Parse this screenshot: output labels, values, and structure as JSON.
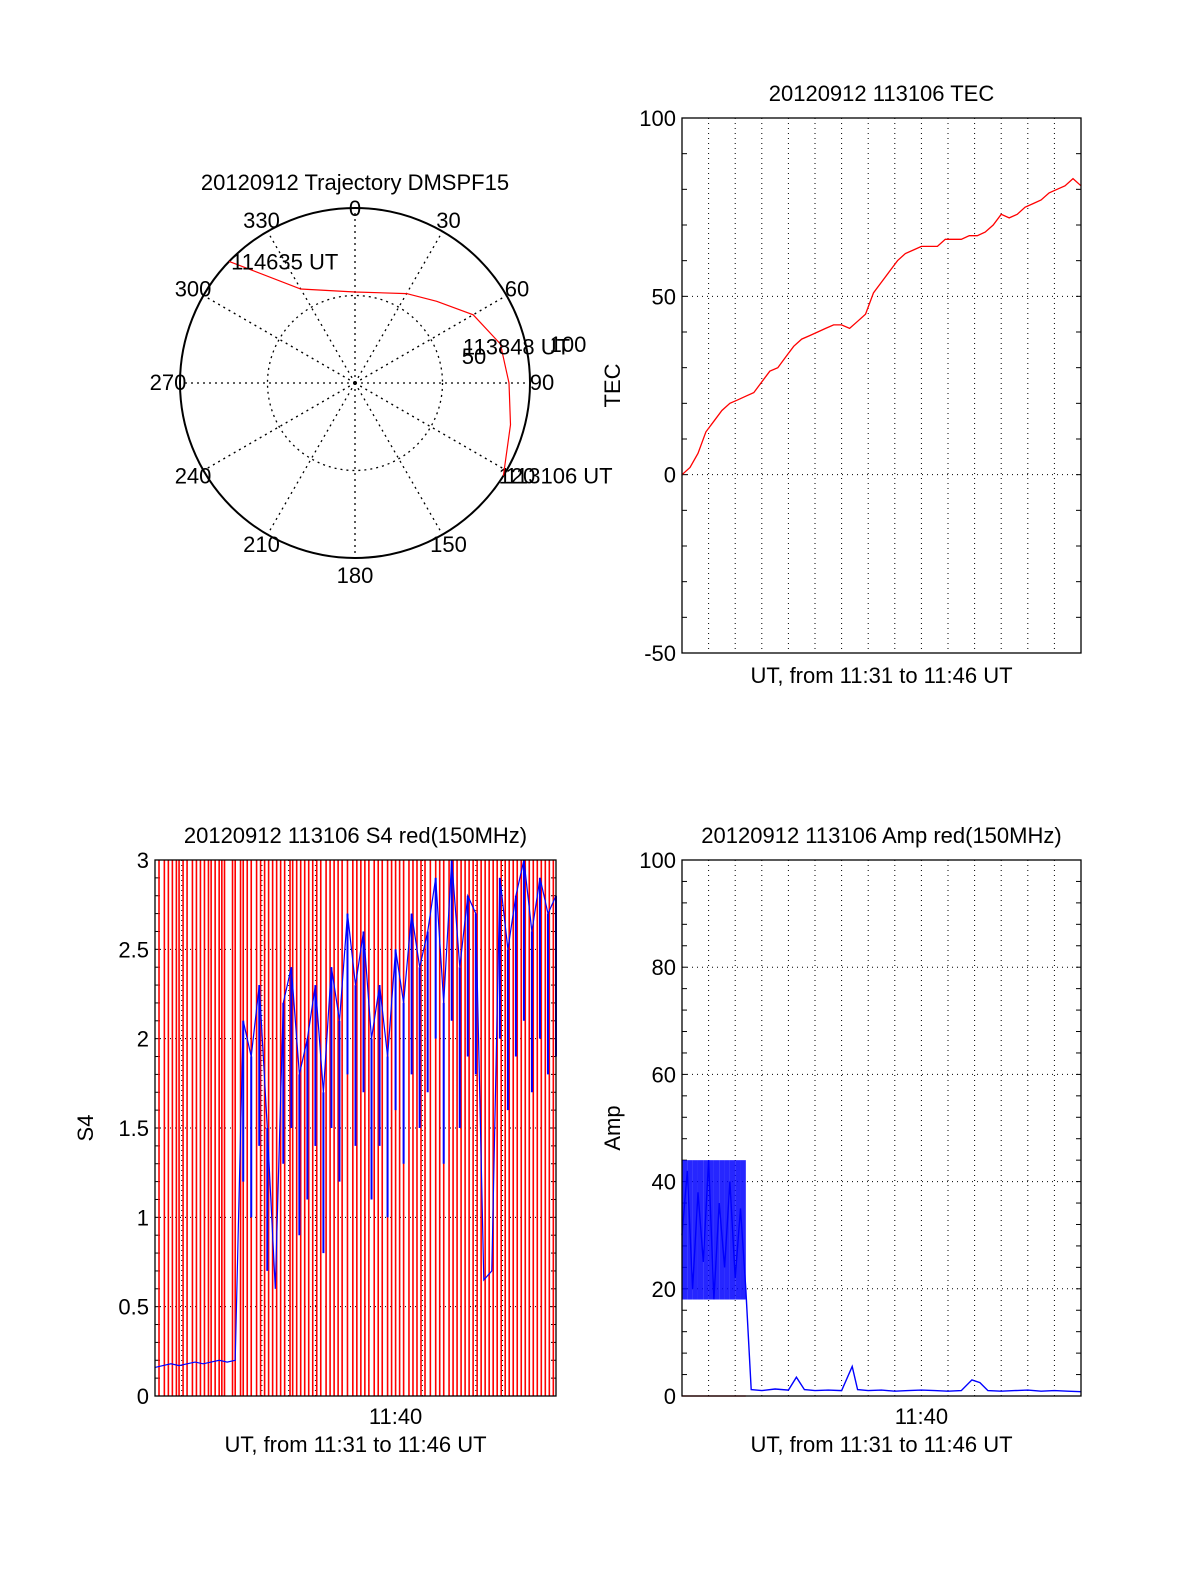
{
  "colors": {
    "red": "#ff0000",
    "blue": "#0000ff",
    "axis": "#000000",
    "grid": "#000000"
  },
  "chart_data": [
    {
      "type": "polar",
      "title": "20120912 Trajectory DMSPF15",
      "azimuth_labels": [
        "0",
        "30",
        "60",
        "90",
        "120",
        "150",
        "180",
        "210",
        "240",
        "270",
        "300",
        "330"
      ],
      "radius_labels": [
        "50",
        "100"
      ],
      "radius_range": [
        0,
        100
      ],
      "grid": true,
      "series": [
        {
          "color": "red",
          "points": [
            {
              "az": 314,
              "r": 100
            },
            {
              "az": 330,
              "r": 62
            },
            {
              "az": 0,
              "r": 52
            },
            {
              "az": 30,
              "r": 59
            },
            {
              "az": 45,
              "r": 66
            },
            {
              "az": 60,
              "r": 78
            },
            {
              "az": 75,
              "r": 86
            },
            {
              "az": 90,
              "r": 88
            },
            {
              "az": 105,
              "r": 92
            },
            {
              "az": 122,
              "r": 100
            }
          ]
        }
      ],
      "annotations": [
        {
          "text": "114635 UT",
          "az": 314,
          "r": 100
        },
        {
          "text": "113848 UT",
          "az": 71,
          "r": 64
        },
        {
          "text": "113106 UT",
          "az": 122,
          "r": 100
        }
      ]
    },
    {
      "type": "line",
      "title": "20120912 113106 TEC",
      "xlabel": "UT, from 11:31 to 11:46 UT",
      "ylabel": "TEC",
      "xlim": [
        0,
        15
      ],
      "ylim": [
        -50,
        100
      ],
      "yticks": [
        -50,
        0,
        50,
        100
      ],
      "grid": true,
      "series": [
        {
          "color": "red",
          "x": [
            0,
            0.3,
            0.6,
            0.9,
            1.2,
            1.5,
            1.8,
            2.1,
            2.4,
            2.7,
            3.0,
            3.3,
            3.6,
            3.9,
            4.2,
            4.5,
            4.8,
            5.1,
            5.4,
            5.7,
            6.0,
            6.3,
            6.6,
            6.9,
            7.2,
            7.5,
            7.8,
            8.1,
            8.4,
            8.7,
            9.0,
            9.3,
            9.6,
            9.9,
            10.2,
            10.5,
            10.8,
            11.1,
            11.4,
            11.7,
            12.0,
            12.3,
            12.6,
            12.9,
            13.2,
            13.5,
            13.8,
            14.1,
            14.4,
            14.7,
            15.0
          ],
          "y": [
            0,
            2,
            6,
            12,
            15,
            18,
            20,
            21,
            22,
            23,
            26,
            29,
            30,
            33,
            36,
            38,
            39,
            40,
            41,
            42,
            42,
            41,
            43,
            45,
            51,
            54,
            57,
            60,
            62,
            63,
            64,
            64,
            64,
            66,
            66,
            66,
            67,
            67,
            68,
            70,
            73,
            72,
            73,
            75,
            76,
            77,
            79,
            80,
            81,
            83,
            81
          ]
        }
      ]
    },
    {
      "type": "line",
      "title": "20120912 113106 S4 red(150MHz)",
      "xlabel": "UT, from 11:31 to 11:46 UT",
      "ylabel": "S4",
      "xlim": [
        0,
        15
      ],
      "ylim": [
        0,
        3
      ],
      "yticks": [
        "0",
        "0.5",
        "1",
        "1.5",
        "2",
        "2.5",
        "3"
      ],
      "xticks": [
        {
          "x": 9,
          "label": "11:40"
        }
      ],
      "grid": true,
      "series": [
        {
          "color": "red",
          "x": [
            0.15,
            0.35,
            0.5,
            0.65,
            0.8,
            0.9,
            1.05,
            1.2,
            1.4,
            1.55,
            1.7,
            1.85,
            2.0,
            2.1,
            2.25,
            2.4,
            2.5,
            2.6,
            2.9,
            3.0,
            3.2,
            3.3,
            3.45,
            3.6,
            3.8,
            3.95,
            4.1,
            4.25,
            4.4,
            4.55,
            4.7,
            4.85,
            5.05,
            5.15,
            5.3,
            5.45,
            5.6,
            5.75,
            5.9,
            6.05,
            6.2,
            6.4,
            6.55,
            6.7,
            6.85,
            7.0,
            7.2,
            7.4,
            7.55,
            7.7,
            7.85,
            8.0,
            8.2,
            8.35,
            8.5,
            8.7,
            8.85,
            9.0,
            9.15,
            9.3,
            9.5,
            9.65,
            9.8,
            9.95,
            10.1,
            10.3,
            10.5,
            10.65,
            10.8,
            11.0,
            11.15,
            11.3,
            11.45,
            11.6,
            11.75,
            11.9,
            12.05,
            12.2,
            12.35,
            12.5,
            12.65,
            12.8,
            12.95,
            13.1,
            13.25,
            13.4,
            13.55,
            13.7,
            13.85,
            14.0,
            14.15,
            14.3,
            14.45,
            14.6,
            14.75,
            14.9
          ]
        },
        {
          "color": "blue",
          "x": [
            0,
            0.3,
            0.6,
            0.9,
            1.2,
            1.5,
            1.8,
            2.1,
            2.4,
            2.7,
            3.0,
            3.3,
            3.6,
            3.9,
            4.2,
            4.5,
            4.8,
            5.1,
            5.4,
            5.7,
            6.0,
            6.3,
            6.6,
            6.9,
            7.2,
            7.5,
            7.8,
            8.1,
            8.4,
            8.7,
            9.0,
            9.3,
            9.6,
            9.9,
            10.2,
            10.5,
            10.8,
            11.1,
            11.4,
            11.7,
            12.0,
            12.3,
            12.6,
            12.9,
            13.2,
            13.5,
            13.8,
            14.1,
            14.4,
            14.7,
            15.0
          ],
          "y": [
            0.16,
            0.17,
            0.18,
            0.17,
            0.18,
            0.19,
            0.18,
            0.19,
            0.2,
            0.19,
            0.2,
            2.1,
            1.9,
            2.3,
            1.5,
            0.6,
            2.2,
            2.4,
            1.8,
            2.0,
            2.3,
            1.7,
            2.4,
            2.1,
            2.7,
            2.3,
            2.6,
            2.0,
            2.3,
            1.9,
            2.5,
            2.2,
            2.7,
            2.4,
            2.6,
            2.9,
            2.2,
            3.0,
            2.4,
            2.8,
            2.7,
            0.65,
            0.7,
            2.9,
            2.5,
            2.8,
            3.0,
            2.6,
            2.9,
            2.7,
            2.8
          ]
        }
      ]
    },
    {
      "type": "line",
      "title": "20120912 113106 Amp red(150MHz)",
      "xlabel": "UT, from 11:31 to 11:46 UT",
      "ylabel": "Amp",
      "xlim": [
        0,
        15
      ],
      "ylim": [
        0,
        100
      ],
      "yticks": [
        0,
        20,
        40,
        60,
        80,
        100
      ],
      "xticks": [
        {
          "x": 9,
          "label": "11:40"
        }
      ],
      "grid": true,
      "series": [
        {
          "color": "red",
          "x": [
            0,
            0.5,
            1.0,
            1.5,
            2.0,
            2.4
          ],
          "y": [
            0,
            0,
            0,
            0,
            0,
            0
          ]
        },
        {
          "color": "blue",
          "x": [
            0,
            0.2,
            0.4,
            0.6,
            0.8,
            1.0,
            1.2,
            1.4,
            1.6,
            1.8,
            2.0,
            2.2,
            2.4,
            2.6,
            3.0,
            3.5,
            4.0,
            4.3,
            4.6,
            5.0,
            5.5,
            6.0,
            6.4,
            6.6,
            7.0,
            7.5,
            8.0,
            8.5,
            9.0,
            9.5,
            10.0,
            10.5,
            10.9,
            11.2,
            11.5,
            12.0,
            12.5,
            13.0,
            13.5,
            14.0,
            14.5,
            15.0
          ],
          "y": [
            30,
            42,
            20,
            38,
            25,
            44,
            18,
            36,
            24,
            40,
            22,
            35,
            20,
            1.2,
            1.0,
            1.3,
            1.1,
            3.5,
            1.2,
            1.0,
            1.1,
            1.0,
            5.5,
            1.2,
            1.0,
            1.1,
            0.9,
            1.0,
            1.1,
            1.0,
            0.9,
            1.0,
            3.0,
            2.5,
            1.0,
            0.9,
            1.0,
            1.1,
            0.9,
            1.0,
            0.9,
            0.8
          ]
        }
      ]
    }
  ]
}
